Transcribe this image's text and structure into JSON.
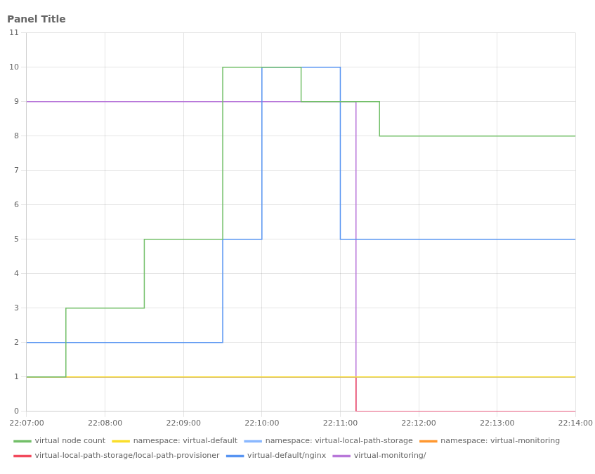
{
  "chart_data": {
    "type": "line",
    "title": "Panel Title",
    "xlim": [
      0,
      420
    ],
    "xticks": [
      {
        "value": 0,
        "label": "22:07:00"
      },
      {
        "value": 60,
        "label": "22:08:00"
      },
      {
        "value": 120,
        "label": "22:09:00"
      },
      {
        "value": 180,
        "label": "22:10:00"
      },
      {
        "value": 240,
        "label": "22:11:00"
      },
      {
        "value": 300,
        "label": "22:12:00"
      },
      {
        "value": 360,
        "label": "22:13:00"
      },
      {
        "value": 420,
        "label": "22:14:00"
      }
    ],
    "ylim": [
      0,
      11
    ],
    "yticks": [
      0,
      1,
      2,
      3,
      4,
      5,
      6,
      7,
      8,
      9,
      10,
      11
    ],
    "grid": true,
    "legend": "bottom",
    "series": [
      {
        "name": "virtual node count",
        "color": "#73bf69",
        "x": [
          0,
          30,
          30,
          90,
          90,
          150,
          150,
          210,
          210,
          270,
          270,
          330,
          330,
          420
        ],
        "values": [
          1,
          1,
          3,
          3,
          5,
          5,
          10,
          10,
          9,
          9,
          8,
          8,
          8,
          8
        ]
      },
      {
        "name": "namespace: virtual-default",
        "color": "#fade2a",
        "x": [
          0,
          420
        ],
        "values": [
          1,
          1
        ]
      },
      {
        "name": "namespace: virtual-local-path-storage",
        "color": "#8ab8ff",
        "x": [
          0,
          420
        ],
        "values": [
          1,
          1
        ]
      },
      {
        "name": "namespace: virtual-monitoring",
        "color": "#ff9830",
        "x": [
          0,
          420
        ],
        "values": [
          1,
          1
        ]
      },
      {
        "name": "virtual-local-path-storage/local-path-provisioner",
        "color": "#f2495c",
        "x": [
          0,
          240,
          240,
          252,
          252,
          420
        ],
        "values": [
          1,
          1,
          1,
          1,
          0,
          0
        ]
      },
      {
        "name": "virtual-default/nginx",
        "color": "#5794f2",
        "x": [
          0,
          120,
          120,
          150,
          150,
          180,
          180,
          240,
          240,
          420
        ],
        "values": [
          2,
          2,
          2,
          2,
          5,
          5,
          10,
          10,
          5,
          5
        ]
      },
      {
        "name": "virtual-monitoring/",
        "color": "#b877d9",
        "x": [
          0,
          240,
          240,
          252,
          252,
          420
        ],
        "values": [
          9,
          9,
          9,
          9,
          0,
          0
        ]
      }
    ]
  }
}
